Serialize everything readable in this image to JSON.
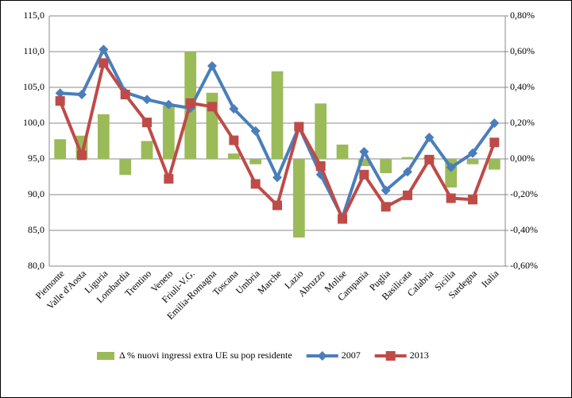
{
  "chart_data": {
    "type": "combo",
    "categories": [
      "Piemonte",
      "Valle d'Aosta",
      "Liguria",
      "Lombardia",
      "Trentino",
      "Veneto",
      "Friuli-V.G.",
      "Emilia-Romagna",
      "Toscana",
      "Umbria",
      "Marche",
      "Lazio",
      "Abruzzo",
      "Molise",
      "Campania",
      "Puglia",
      "Basilicata",
      "Calabria",
      "Sicilia",
      "Sardegna",
      "Italia"
    ],
    "series": [
      {
        "name": "Δ % nuovi ingressi extra UE su pop residente",
        "type": "bar",
        "axis": "y2",
        "color": "#9bbb59",
        "values": [
          0.11,
          0.13,
          0.25,
          -0.09,
          0.1,
          0.3,
          0.6,
          0.37,
          0.03,
          -0.03,
          0.49,
          -0.44,
          0.31,
          0.08,
          -0.04,
          -0.08,
          0.01,
          0.01,
          -0.16,
          -0.03,
          -0.06
        ]
      },
      {
        "name": "2007",
        "type": "line",
        "marker": "diamond",
        "color": "#4a7ebb",
        "values": [
          104.2,
          104.0,
          110.3,
          104.3,
          103.3,
          102.6,
          102.1,
          108.0,
          102.0,
          98.9,
          92.4,
          99.5,
          92.8,
          86.8,
          96.0,
          90.6,
          93.2,
          98.0,
          93.8,
          95.8,
          100.0
        ]
      },
      {
        "name": "2013",
        "type": "line",
        "marker": "square",
        "color": "#be4b48",
        "values": [
          103.1,
          95.5,
          108.4,
          104.0,
          100.1,
          92.2,
          102.8,
          102.3,
          97.6,
          91.5,
          88.5,
          99.5,
          94.0,
          86.6,
          92.8,
          88.3,
          89.9,
          94.9,
          89.5,
          89.3,
          97.3
        ]
      }
    ],
    "ylim": [
      80,
      115
    ],
    "yticks": [
      {
        "value": 80,
        "label": "80,0"
      },
      {
        "value": 85,
        "label": "85,0"
      },
      {
        "value": 90,
        "label": "90,0"
      },
      {
        "value": 95,
        "label": "95,0"
      },
      {
        "value": 100,
        "label": "100,0"
      },
      {
        "value": 105,
        "label": "105,0"
      },
      {
        "value": 110,
        "label": "110,0"
      },
      {
        "value": 115,
        "label": "115,0"
      }
    ],
    "y2lim": [
      -0.6,
      0.8
    ],
    "y2ticks": [
      {
        "value": -0.6,
        "label": "-0,60%"
      },
      {
        "value": -0.4,
        "label": "-0,40%"
      },
      {
        "value": -0.2,
        "label": "-0,20%"
      },
      {
        "value": 0,
        "label": "0,00%"
      },
      {
        "value": 0.2,
        "label": "0,20%"
      },
      {
        "value": 0.4,
        "label": "0,40%"
      },
      {
        "value": 0.6,
        "label": "0,60%"
      },
      {
        "value": 0.8,
        "label": "0,80%"
      }
    ],
    "grid": true,
    "legend": "bottom"
  }
}
